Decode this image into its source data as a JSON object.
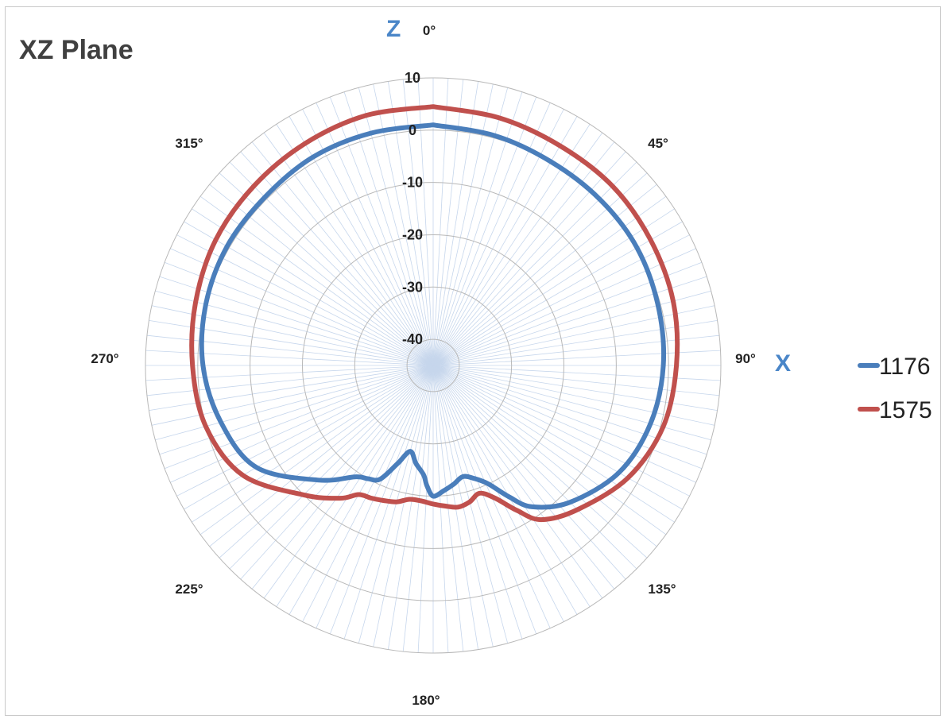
{
  "chart_data": {
    "type": "polar-line",
    "title": "XZ Plane",
    "axis_names": {
      "vertical": "Z",
      "horizontal": "X"
    },
    "r_ticks": [
      "10",
      "0",
      "-10",
      "-20",
      "-30",
      "-40"
    ],
    "r_range": [
      -45,
      10
    ],
    "angle_labels": [
      {
        "deg": 0,
        "label": "0°"
      },
      {
        "deg": 45,
        "label": "45°"
      },
      {
        "deg": 90,
        "label": "90°"
      },
      {
        "deg": 135,
        "label": "135°"
      },
      {
        "deg": 180,
        "label": "180°"
      },
      {
        "deg": 225,
        "label": "225°"
      },
      {
        "deg": 270,
        "label": "270°"
      },
      {
        "deg": 315,
        "label": "315°"
      }
    ],
    "legend_position": "right",
    "series": [
      {
        "name": "1176",
        "color": "#4a7ebb",
        "angles": [
          0,
          15,
          30,
          45,
          60,
          75,
          90,
          105,
          120,
          135,
          145,
          150,
          155,
          160,
          165,
          170,
          175,
          180,
          183,
          185,
          190,
          195,
          200,
          205,
          210,
          215,
          225,
          240,
          255,
          270,
          285,
          300,
          315,
          330,
          345,
          360
        ],
        "values": [
          1,
          0.5,
          0,
          0,
          0,
          -0.5,
          -1,
          -2,
          -4,
          -8,
          -12,
          -16,
          -20,
          -22,
          -23,
          -22,
          -21,
          -20,
          -22,
          -24,
          -26,
          -28,
          -25,
          -21,
          -20,
          -19,
          -14,
          -6,
          -3,
          -1,
          0,
          0.5,
          0.5,
          1,
          1,
          1
        ]
      },
      {
        "name": "1575",
        "color": "#c0504d",
        "angles": [
          0,
          15,
          30,
          45,
          60,
          75,
          90,
          105,
          120,
          135,
          145,
          150,
          155,
          160,
          165,
          170,
          175,
          180,
          185,
          190,
          195,
          200,
          205,
          210,
          215,
          225,
          240,
          255,
          270,
          285,
          300,
          315,
          330,
          345,
          360
        ],
        "values": [
          4.5,
          4,
          3.5,
          3.5,
          3,
          2.5,
          1.5,
          0.5,
          -2,
          -6,
          -9,
          -13,
          -17,
          -19,
          -18,
          -17.5,
          -18,
          -18.5,
          -19,
          -19,
          -18,
          -17.5,
          -17,
          -16.5,
          -14,
          -10,
          -3,
          0,
          1,
          2,
          3,
          3.5,
          4,
          4.5,
          4.5
        ]
      }
    ]
  }
}
